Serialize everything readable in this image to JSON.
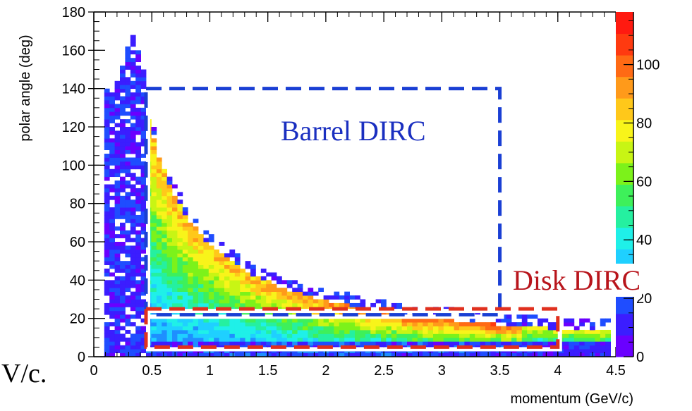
{
  "colors": {
    "barrel_region": "#1a3fd4",
    "disk_region": "#e0301e",
    "barrel_text": "#1a2fc0",
    "disk_text": "#b8151c",
    "axis": "#000000"
  },
  "overlay": {
    "clipped_text": "V/c."
  },
  "chart_data": {
    "type": "heatmap",
    "title": "",
    "xlabel": "momentum (GeV/c)",
    "ylabel": "polar angle (deg)",
    "xlim": [
      0,
      4.5
    ],
    "ylim": [
      0,
      180
    ],
    "zlim": [
      0,
      118
    ],
    "x_ticks": [
      "0",
      "0.5",
      "1",
      "1.5",
      "2",
      "2.5",
      "3",
      "3.5",
      "4",
      "4.5"
    ],
    "y_ticks": [
      "0",
      "20",
      "40",
      "60",
      "80",
      "100",
      "120",
      "140",
      "160",
      "180"
    ],
    "colorbar_ticks": [
      "0",
      "20",
      "40",
      "60",
      "80",
      "100"
    ],
    "colorscale": [
      "#6a00ff",
      "#3b1dff",
      "#1f4dff",
      "#1e8fff",
      "#1fd0ff",
      "#1ff0e8",
      "#25f0a0",
      "#3ef05a",
      "#7cf21a",
      "#c8f514",
      "#f8f41a",
      "#ffc81a",
      "#ff9a1a",
      "#ff6a14",
      "#ff3a10",
      "#ff1a10"
    ],
    "grid": false,
    "legend": "colorbar-right",
    "regions": [
      {
        "label": "Barrel DIRC",
        "x": [
          0.45,
          3.5
        ],
        "y": [
          22,
          140
        ]
      },
      {
        "label": "Disk DIRC",
        "x": [
          0.45,
          4.0
        ],
        "y": [
          5,
          25
        ]
      }
    ]
  }
}
